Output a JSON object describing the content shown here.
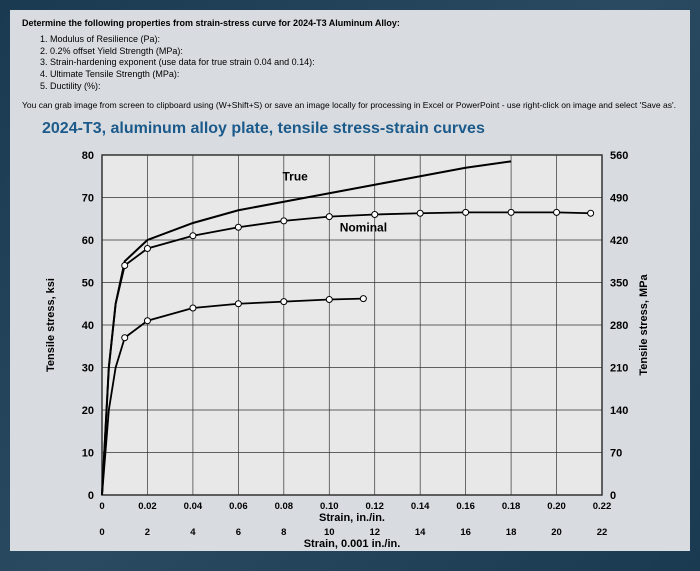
{
  "intro": "Determine the following properties from strain-stress curve for 2024-T3 Aluminum Alloy:",
  "items": [
    "1. Modulus of Resilience (Pa):",
    "2. 0.2% offset Yield Strength (MPa):",
    "3. Strain-hardening exponent (use data for true strain 0.04 and 0.14):",
    "4. Ultimate Tensile Strength (MPa):",
    "5. Ductility (%):"
  ],
  "instruction": "You can grab image from screen to clipboard using (W+Shift+S) or save an image locally for processing in Excel or PowerPoint - use right-click on image and select 'Save as'.",
  "chart": {
    "title": "2024-T3, aluminum alloy plate, tensile stress-strain curves",
    "left_label": "Tensile stress, ksi",
    "right_label": "Tensile stress, MPa",
    "x_label_top": "Strain, in./in.",
    "x_label_bot": "Strain, 0.001 in./in.",
    "left_ticks": [
      0,
      10,
      20,
      30,
      40,
      50,
      60,
      70,
      80
    ],
    "right_ticks": [
      0,
      70,
      140,
      210,
      280,
      350,
      420,
      490,
      560
    ],
    "x_ticks_top": [
      "0",
      "0.02",
      "0.04",
      "0.06",
      "0.08",
      "0.10",
      "0.12",
      "0.14",
      "0.16",
      "0.18",
      "0.20",
      "0.22"
    ],
    "x_ticks_bot": [
      "0",
      "2",
      "4",
      "6",
      "8",
      "10",
      "12",
      "14",
      "16",
      "18",
      "20",
      "22"
    ],
    "curve_labels": {
      "true": "True",
      "nominal": "Nominal"
    },
    "colors": {
      "bg": "#e8e8e8",
      "grid": "#333",
      "curve": "#000",
      "marker_fill": "#fff"
    },
    "true_curve_upper": [
      [
        0,
        0
      ],
      [
        0.003,
        30
      ],
      [
        0.006,
        45
      ],
      [
        0.01,
        55
      ],
      [
        0.02,
        60
      ],
      [
        0.04,
        64
      ],
      [
        0.06,
        67
      ],
      [
        0.08,
        69
      ],
      [
        0.1,
        71
      ],
      [
        0.12,
        73
      ],
      [
        0.14,
        75
      ],
      [
        0.16,
        77
      ],
      [
        0.18,
        78.5
      ]
    ],
    "nominal_curve_upper": [
      [
        0,
        0
      ],
      [
        0.003,
        30
      ],
      [
        0.006,
        45
      ],
      [
        0.01,
        54
      ],
      [
        0.02,
        58
      ],
      [
        0.04,
        61
      ],
      [
        0.06,
        63
      ],
      [
        0.08,
        64.5
      ],
      [
        0.1,
        65.5
      ],
      [
        0.12,
        66
      ],
      [
        0.14,
        66.3
      ],
      [
        0.16,
        66.5
      ],
      [
        0.18,
        66.5
      ],
      [
        0.2,
        66.5
      ],
      [
        0.215,
        66.3
      ]
    ],
    "lower_curve": [
      [
        0,
        0
      ],
      [
        0.003,
        20
      ],
      [
        0.006,
        30
      ],
      [
        0.01,
        37
      ],
      [
        0.02,
        41
      ],
      [
        0.04,
        44
      ],
      [
        0.06,
        45
      ],
      [
        0.08,
        45.5
      ],
      [
        0.1,
        46
      ],
      [
        0.115,
        46.2
      ]
    ]
  }
}
